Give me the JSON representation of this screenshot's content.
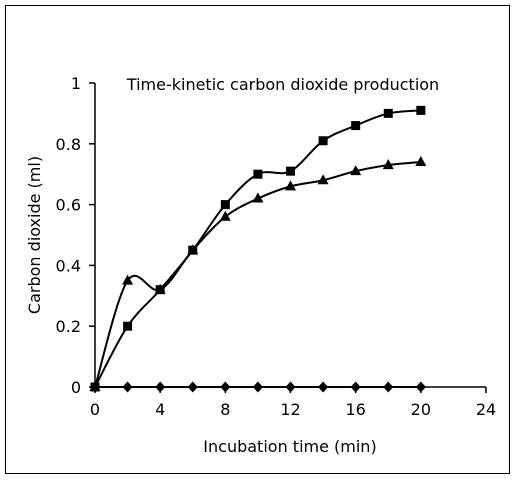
{
  "chart_data": {
    "type": "line",
    "title": "Time-kinetic carbon dioxide production",
    "xlabel": "Incubation time (min)",
    "ylabel": "Carbon dioxide (ml)",
    "xlim": [
      0,
      24
    ],
    "ylim": [
      0,
      1
    ],
    "xticks": [
      0,
      4,
      8,
      12,
      16,
      20,
      24
    ],
    "yticks": [
      0,
      0.2,
      0.4,
      0.6,
      0.8,
      1
    ],
    "ytick_labels": [
      "0",
      "0.2",
      "0.4",
      "0.6",
      "0.8",
      "1"
    ],
    "grid": false,
    "legend": "none",
    "series": [
      {
        "marker": "square",
        "x": [
          0,
          2,
          4,
          6,
          8,
          10,
          12,
          14,
          16,
          18,
          20
        ],
        "values": [
          0,
          0.2,
          0.32,
          0.45,
          0.6,
          0.7,
          0.71,
          0.81,
          0.86,
          0.9,
          0.91
        ]
      },
      {
        "marker": "triangle",
        "x": [
          0,
          2,
          4,
          6,
          8,
          10,
          12,
          14,
          16,
          18,
          20
        ],
        "values": [
          0,
          0.35,
          0.32,
          0.45,
          0.56,
          0.62,
          0.66,
          0.68,
          0.71,
          0.73,
          0.74
        ]
      },
      {
        "marker": "diamond",
        "x": [
          0,
          2,
          4,
          6,
          8,
          10,
          12,
          14,
          16,
          18,
          20
        ],
        "values": [
          0,
          0,
          0,
          0,
          0,
          0,
          0,
          0,
          0,
          0,
          0
        ]
      }
    ],
    "colors": {
      "line": "#000000",
      "marker": "#000000"
    }
  }
}
